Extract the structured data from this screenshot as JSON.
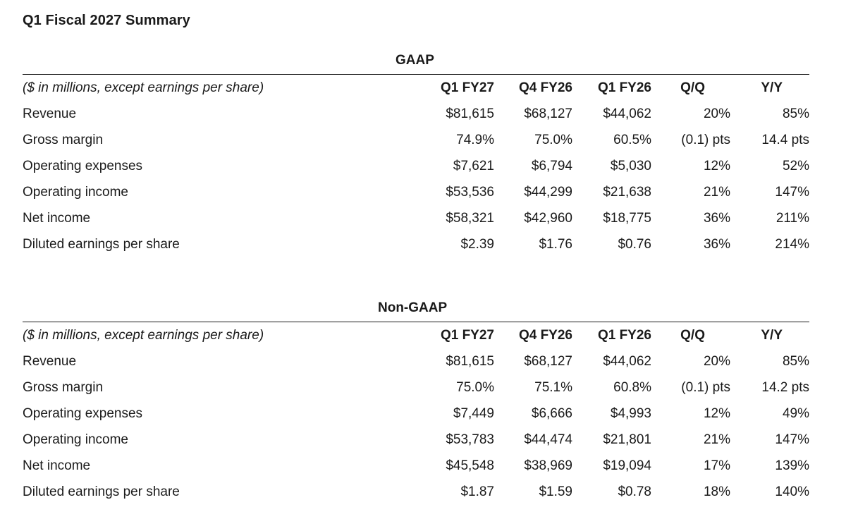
{
  "page_title": "Q1 Fiscal 2027 Summary",
  "units_note": "($ in millions, except earnings per share)",
  "columns": [
    "Q1 FY27",
    "Q4 FY26",
    "Q1 FY26",
    "Q/Q",
    "Y/Y"
  ],
  "gaap": {
    "title": "GAAP",
    "rows": [
      {
        "label": "Revenue",
        "values": [
          "$81,615",
          "$68,127",
          "$44,062",
          "20%",
          "85%"
        ]
      },
      {
        "label": "Gross margin",
        "values": [
          "74.9%",
          "75.0%",
          "60.5%",
          "(0.1) pts",
          "14.4 pts"
        ]
      },
      {
        "label": "Operating expenses",
        "values": [
          "$7,621",
          "$6,794",
          "$5,030",
          "12%",
          "52%"
        ]
      },
      {
        "label": "Operating income",
        "values": [
          "$53,536",
          "$44,299",
          "$21,638",
          "21%",
          "147%"
        ]
      },
      {
        "label": "Net income",
        "values": [
          "$58,321",
          "$42,960",
          "$18,775",
          "36%",
          "211%"
        ]
      },
      {
        "label": "Diluted earnings per share",
        "values": [
          "$2.39",
          "$1.76",
          "$0.76",
          "36%",
          "214%"
        ]
      }
    ]
  },
  "non_gaap": {
    "title": "Non-GAAP",
    "rows": [
      {
        "label": "Revenue",
        "values": [
          "$81,615",
          "$68,127",
          "$44,062",
          "20%",
          "85%"
        ]
      },
      {
        "label": "Gross margin",
        "values": [
          "75.0%",
          "75.1%",
          "60.8%",
          "(0.1) pts",
          "14.2 pts"
        ]
      },
      {
        "label": "Operating expenses",
        "values": [
          "$7,449",
          "$6,666",
          "$4,993",
          "12%",
          "49%"
        ]
      },
      {
        "label": "Operating income",
        "values": [
          "$53,783",
          "$44,474",
          "$21,801",
          "21%",
          "147%"
        ]
      },
      {
        "label": "Net income",
        "values": [
          "$45,548",
          "$38,969",
          "$19,094",
          "17%",
          "139%"
        ]
      },
      {
        "label": "Diluted earnings per share",
        "values": [
          "$1.87",
          "$1.59",
          "$0.78",
          "18%",
          "140%"
        ]
      }
    ]
  }
}
